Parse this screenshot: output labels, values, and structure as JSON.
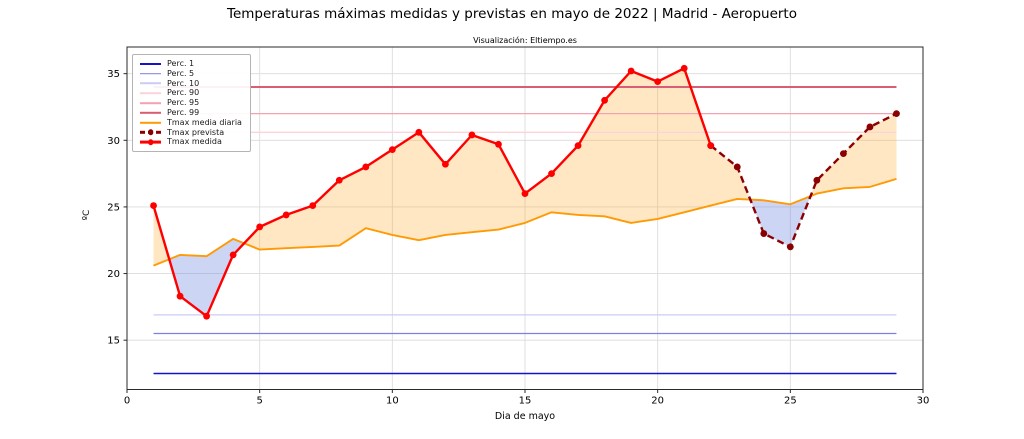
{
  "chart_data": {
    "type": "line",
    "title": "Temperaturas máximas medidas y previstas en mayo de 2022 | Madrid - Aeropuerto",
    "subtitle": "Visualización: Eltiempo.es",
    "axes": {
      "xlabel": "Dia de mayo",
      "ylabel": "ºC",
      "xlim": [
        0,
        30
      ],
      "ylim": [
        11.3,
        37.0
      ],
      "xticks": [
        0,
        5,
        10,
        15,
        20,
        25,
        30
      ],
      "yticks": [
        15,
        20,
        25,
        30,
        35
      ],
      "grid": true,
      "legend_position": "upper-left"
    },
    "percentiles": [
      {
        "label": "Perc. 1",
        "value": 12.5,
        "color_key": "perc1",
        "width": 1.6
      },
      {
        "label": "Perc. 5",
        "value": 15.5,
        "color_key": "perc5",
        "width": 1.3
      },
      {
        "label": "Perc. 10",
        "value": 16.9,
        "color_key": "perc10",
        "width": 1.3
      },
      {
        "label": "Perc. 90",
        "value": 30.6,
        "color_key": "perc90",
        "width": 1.3
      },
      {
        "label": "Perc. 95",
        "value": 32.0,
        "color_key": "perc95",
        "width": 1.3
      },
      {
        "label": "Perc. 99",
        "value": 34.0,
        "color_key": "perc99",
        "width": 2.0
      }
    ],
    "series": [
      {
        "name": "Tmax media diaria",
        "color_key": "media",
        "style": "solid",
        "days": [
          1,
          2,
          3,
          4,
          5,
          6,
          7,
          8,
          9,
          10,
          11,
          12,
          13,
          14,
          15,
          16,
          17,
          18,
          19,
          20,
          21,
          22,
          23,
          24,
          25,
          26,
          27,
          28,
          29
        ],
        "values": [
          20.6,
          21.4,
          21.3,
          22.6,
          21.8,
          21.9,
          22.0,
          22.1,
          23.4,
          22.9,
          22.5,
          22.9,
          23.1,
          23.3,
          23.8,
          24.6,
          24.4,
          24.3,
          23.8,
          24.1,
          24.6,
          25.1,
          25.6,
          25.5,
          25.2,
          26.0,
          26.4,
          26.5,
          27.1
        ]
      },
      {
        "name": "Tmax prevista",
        "color_key": "prevista",
        "style": "dashed",
        "markers": true,
        "days": [
          22,
          23,
          24,
          25,
          26,
          27,
          28,
          29
        ],
        "values": [
          29.6,
          28.0,
          23.0,
          22.0,
          27.0,
          29.0,
          31.0,
          32.0
        ]
      },
      {
        "name": "Tmax medida",
        "color_key": "medida",
        "style": "solid",
        "markers": true,
        "days": [
          1,
          2,
          3,
          4,
          5,
          6,
          7,
          8,
          9,
          10,
          11,
          12,
          13,
          14,
          15,
          16,
          17,
          18,
          19,
          20,
          21,
          22
        ],
        "values": [
          25.1,
          18.3,
          16.8,
          21.4,
          23.5,
          24.4,
          25.1,
          27.0,
          28.0,
          29.3,
          30.6,
          28.2,
          30.4,
          29.7,
          26.0,
          27.5,
          29.6,
          33.0,
          35.2,
          34.4,
          35.4,
          29.6
        ]
      }
    ],
    "legend": [
      {
        "label": "Perc. 1",
        "color_key": "perc1",
        "style": "line",
        "lw": 2.0
      },
      {
        "label": "Perc. 5",
        "color_key": "perc5",
        "style": "line",
        "lw": 1.6
      },
      {
        "label": "Perc. 10",
        "color_key": "perc10",
        "style": "line",
        "lw": 1.6
      },
      {
        "label": "Perc. 90",
        "color_key": "perc90",
        "style": "line",
        "lw": 1.6
      },
      {
        "label": "Perc. 95",
        "color_key": "perc95",
        "style": "line",
        "lw": 1.6
      },
      {
        "label": "Perc. 99",
        "color_key": "perc99",
        "style": "line",
        "lw": 2.4
      },
      {
        "label": "Tmax media diaria",
        "color_key": "media",
        "style": "line",
        "lw": 2.4
      },
      {
        "label": "Tmax prevista",
        "color_key": "prevista",
        "style": "dashed-dot",
        "lw": 2.4
      },
      {
        "label": "Tmax medida",
        "color_key": "medida",
        "style": "line-dot",
        "lw": 2.8
      }
    ],
    "colors": {
      "perc1": "#1414cc",
      "perc5": "#7f7fe0",
      "perc10": "#cbcbf5",
      "perc90": "#fbd4da",
      "perc95": "#f3a2b0",
      "perc99": "#d95d73",
      "media": "#ff9a05",
      "prevista": "#8b0000",
      "medida": "#ff0000",
      "fill_above": "rgba(255,166,33,0.27)",
      "fill_below": "rgba(100,125,220,0.32)",
      "grid": "#dcdcdc",
      "spine": "#2a2a2a",
      "tick_text": "#000000"
    }
  }
}
